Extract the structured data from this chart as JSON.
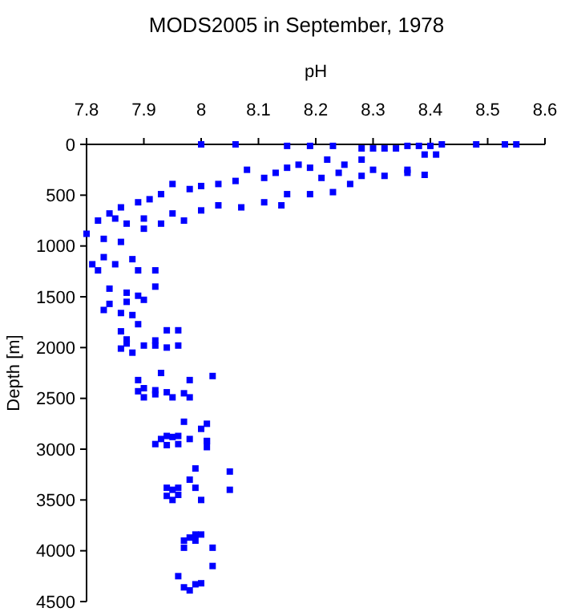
{
  "chart_data": {
    "type": "scatter",
    "title": "MODS2005 in September, 1978",
    "xlabel": "pH",
    "ylabel": "Depth [m]",
    "xlim": [
      7.8,
      8.6
    ],
    "xticks": [
      7.8,
      7.9,
      8,
      8.1,
      8.2,
      8.3,
      8.4,
      8.5,
      8.6
    ],
    "ylim": [
      4500,
      0
    ],
    "yticks": [
      0,
      500,
      1000,
      1500,
      2000,
      2500,
      3000,
      3500,
      4000,
      4500
    ],
    "grid": false,
    "marker": "square",
    "series": [
      {
        "color": "#0000ff",
        "x": [
          8.0,
          8.06,
          8.15,
          8.19,
          8.23,
          8.28,
          8.3,
          8.32,
          8.34,
          8.36,
          8.38,
          8.4,
          8.42,
          8.48,
          8.53,
          8.55,
          8.3,
          8.32,
          8.36,
          8.39,
          8.41,
          8.36,
          8.39,
          8.28,
          8.25,
          8.22,
          8.19,
          8.17,
          8.15,
          8.13,
          8.11,
          8.08,
          8.06,
          8.03,
          8.0,
          7.98,
          7.95,
          7.93,
          7.91,
          7.89,
          7.86,
          7.84,
          7.82,
          7.8,
          7.83,
          7.86,
          7.9,
          7.93,
          7.95,
          7.97,
          8.0,
          8.03,
          8.07,
          8.11,
          8.14,
          8.15,
          8.19,
          8.23,
          8.26,
          8.28,
          8.21,
          8.24,
          7.87,
          7.9,
          7.85,
          7.81,
          7.82,
          7.85,
          7.83,
          7.88,
          7.89,
          7.92,
          7.92,
          7.84,
          7.84,
          7.83,
          7.87,
          7.89,
          7.9,
          7.87,
          7.86,
          7.88,
          7.89,
          7.86,
          7.87,
          7.87,
          7.86,
          7.88,
          7.9,
          7.92,
          7.92,
          7.94,
          7.96,
          7.94,
          7.96,
          7.93,
          8.02,
          7.89,
          7.98,
          7.89,
          7.9,
          7.92,
          7.92,
          7.94,
          7.9,
          7.95,
          7.97,
          7.98,
          7.97,
          8.0,
          8.01,
          8.01,
          7.92,
          7.93,
          7.94,
          7.95,
          7.96,
          7.94,
          7.96,
          7.98,
          8.01,
          8.01,
          7.99,
          8.05,
          7.98,
          7.94,
          7.95,
          7.96,
          7.99,
          8.05,
          7.94,
          7.95,
          7.96,
          8.0,
          7.98,
          7.97,
          7.99,
          8.0,
          7.99,
          7.97,
          8.02,
          8.02,
          7.96,
          7.97,
          7.98,
          7.99,
          8.0
        ],
        "values": [
          0,
          0,
          15,
          15,
          15,
          40,
          40,
          40,
          40,
          15,
          15,
          15,
          0,
          0,
          0,
          0,
          250,
          310,
          250,
          100,
          100,
          280,
          300,
          150,
          200,
          150,
          230,
          200,
          230,
          280,
          330,
          250,
          360,
          390,
          410,
          440,
          390,
          490,
          540,
          570,
          620,
          680,
          750,
          880,
          930,
          960,
          830,
          780,
          680,
          750,
          650,
          600,
          620,
          570,
          600,
          490,
          490,
          470,
          390,
          310,
          330,
          280,
          780,
          730,
          730,
          1180,
          1240,
          1180,
          1110,
          1130,
          1240,
          1240,
          1400,
          1420,
          1570,
          1630,
          1460,
          1490,
          1530,
          1550,
          1660,
          1680,
          1770,
          1840,
          1920,
          1960,
          2010,
          2050,
          1980,
          1930,
          1980,
          1830,
          1830,
          2000,
          1980,
          2250,
          2280,
          2320,
          2320,
          2430,
          2400,
          2420,
          2460,
          2440,
          2490,
          2490,
          2450,
          2490,
          2730,
          2800,
          2750,
          2920,
          2950,
          2900,
          2870,
          2880,
          2870,
          2960,
          2950,
          2900,
          2920,
          2980,
          3190,
          3220,
          3300,
          3380,
          3400,
          3380,
          3380,
          3400,
          3460,
          3500,
          3450,
          3500,
          3870,
          3900,
          3840,
          3840,
          3900,
          3970,
          3970,
          4150,
          4250,
          4360,
          4390,
          4330,
          4320
        ]
      }
    ]
  }
}
